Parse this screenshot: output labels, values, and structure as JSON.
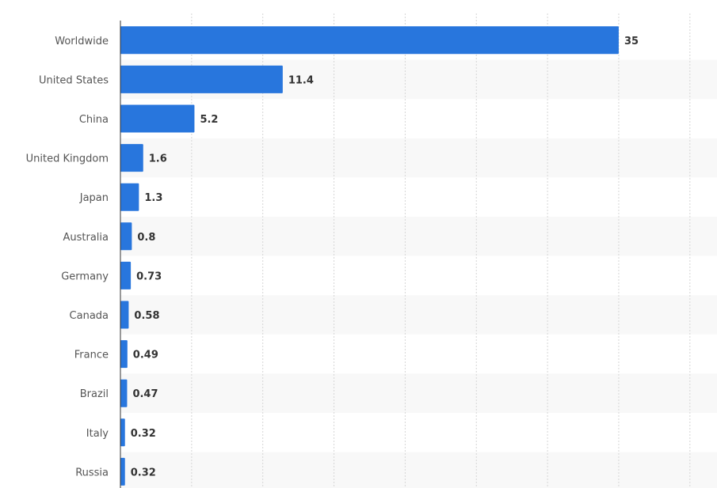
{
  "chart_data": {
    "type": "bar",
    "orientation": "horizontal",
    "categories": [
      "Worldwide",
      "United States",
      "China",
      "United Kingdom",
      "Japan",
      "Australia",
      "Germany",
      "Canada",
      "France",
      "Brazil",
      "Italy",
      "Russia"
    ],
    "values": [
      35,
      11.4,
      5.2,
      1.6,
      1.3,
      0.8,
      0.73,
      0.58,
      0.49,
      0.47,
      0.32,
      0.32
    ],
    "value_labels": [
      "35",
      "11.4",
      "5.2",
      "1.6",
      "1.3",
      "0.8",
      "0.73",
      "0.58",
      "0.49",
      "0.47",
      "0.32",
      "0.32"
    ],
    "xlim": [
      0,
      40
    ],
    "grid": true,
    "bar_color": "#2876dd",
    "band_color": "#f8f8f8",
    "title": "",
    "xlabel": "",
    "ylabel": ""
  }
}
